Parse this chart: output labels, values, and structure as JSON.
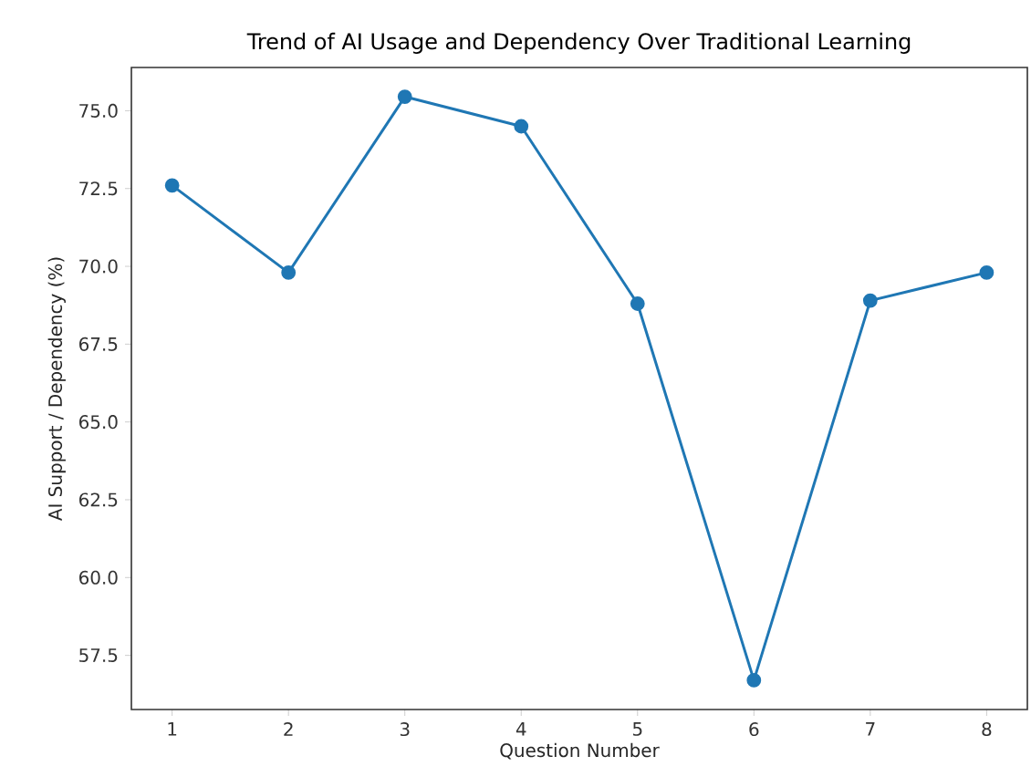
{
  "chart_data": {
    "type": "line",
    "title": "Trend of AI Usage and Dependency Over Traditional Learning",
    "xlabel": "Question Number",
    "ylabel": "AI Support / Dependency (%)",
    "x": [
      1,
      2,
      3,
      4,
      5,
      6,
      7,
      8
    ],
    "values": [
      72.6,
      69.8,
      75.45,
      74.5,
      68.8,
      56.7,
      68.9,
      69.8
    ],
    "color": "#1f77b4",
    "marker": "circle",
    "line_style": "solid",
    "xlim": [
      0.65,
      8.35
    ],
    "ylim": [
      55.76,
      76.39
    ],
    "xticks": [
      1,
      2,
      3,
      4,
      5,
      6,
      7,
      8
    ],
    "yticks": [
      {
        "value": 57.5,
        "label": "57.5"
      },
      {
        "value": 60,
        "label": "60.0"
      },
      {
        "value": 62.5,
        "label": "62.5"
      },
      {
        "value": 65,
        "label": "65.0"
      },
      {
        "value": 67.5,
        "label": "67.5"
      },
      {
        "value": 70,
        "label": "70.0"
      },
      {
        "value": 72.5,
        "label": "72.5"
      },
      {
        "value": 75,
        "label": "75.0"
      }
    ]
  }
}
